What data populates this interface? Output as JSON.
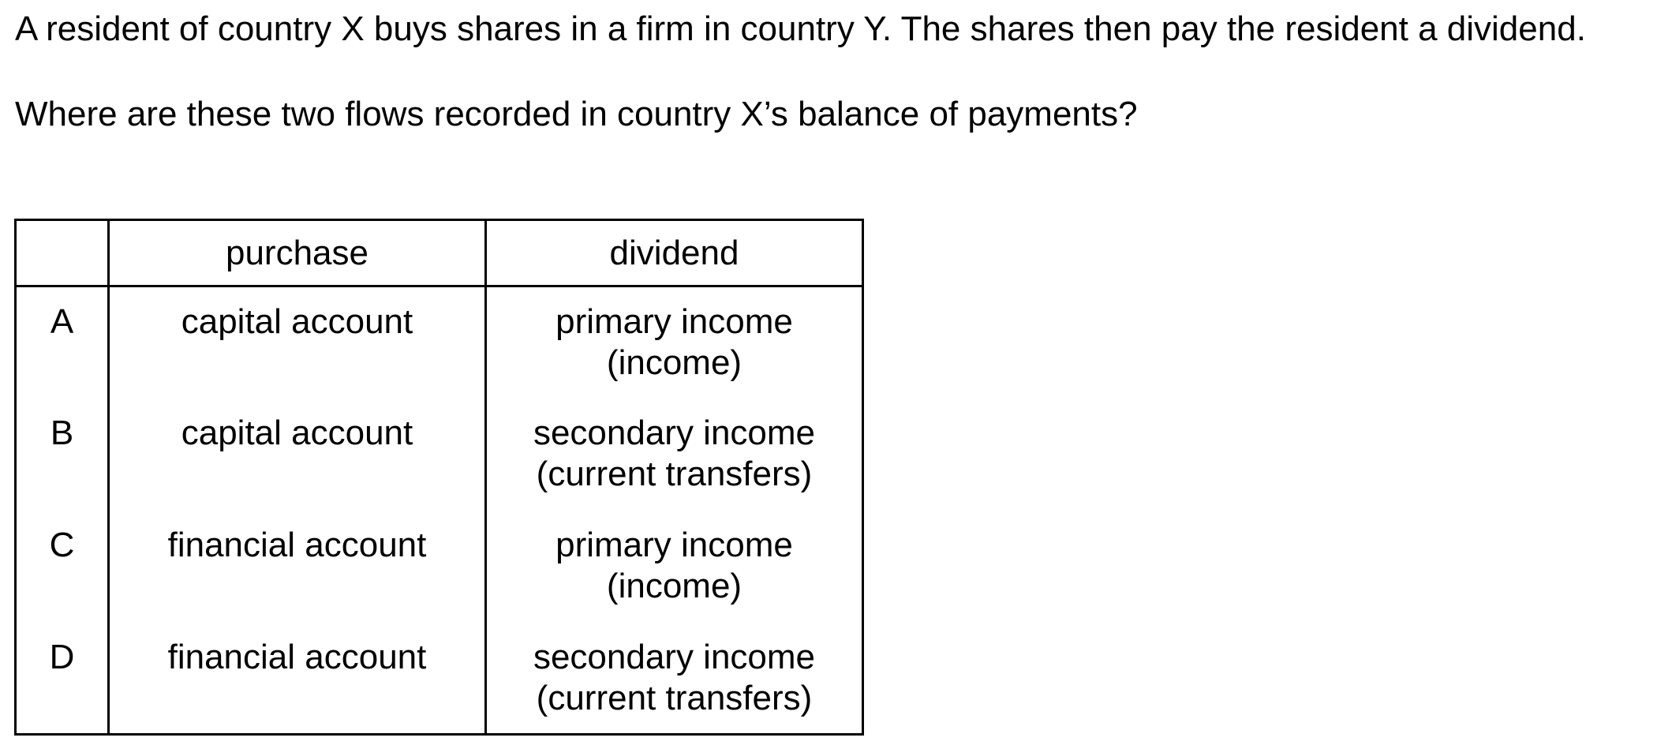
{
  "question": {
    "stem": "A resident of country X buys shares in a firm in country Y. The shares then pay the resident a dividend.",
    "prompt": "Where are these two flows recorded in country X’s balance of payments?"
  },
  "table": {
    "headers": {
      "letter": "",
      "purchase": "purchase",
      "dividend": "dividend"
    },
    "rows": [
      {
        "letter": "A",
        "purchase": "capital account",
        "dividend_main": "primary income",
        "dividend_sub": "(income)"
      },
      {
        "letter": "B",
        "purchase": "capital account",
        "dividend_main": "secondary income",
        "dividend_sub": "(current transfers)"
      },
      {
        "letter": "C",
        "purchase": "financial account",
        "dividend_main": "primary income",
        "dividend_sub": "(income)"
      },
      {
        "letter": "D",
        "purchase": "financial account",
        "dividend_main": "secondary income",
        "dividend_sub": "(current transfers)"
      }
    ]
  }
}
